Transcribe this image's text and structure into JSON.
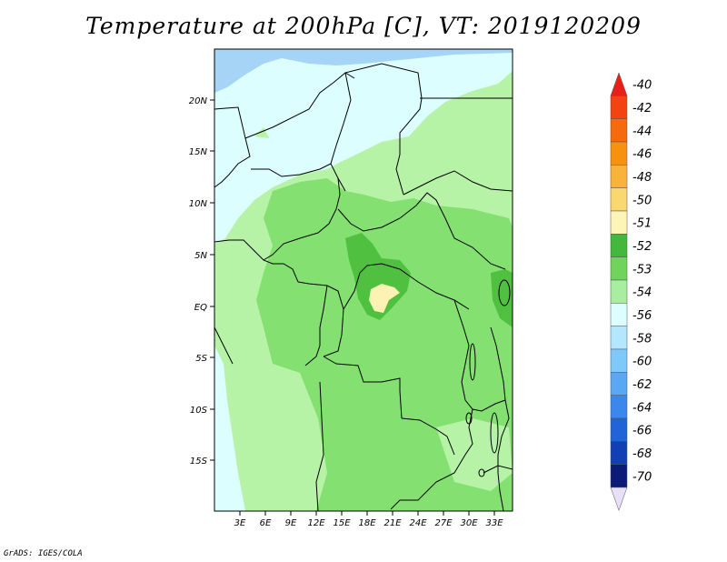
{
  "title": "Temperature at 200hPa [C], VT: 2019120209",
  "credit": "GrADS: IGES/COLA",
  "map": {
    "lat_labels": [
      "20N",
      "15N",
      "10N",
      "5N",
      "EQ",
      "5S",
      "10S",
      "15S"
    ],
    "lon_labels": [
      "3E",
      "6E",
      "9E",
      "12E",
      "15E",
      "18E",
      "21E",
      "24E",
      "27E",
      "30E",
      "33E"
    ]
  },
  "colorbar": {
    "levels": [
      "-40",
      "-42",
      "-44",
      "-46",
      "-48",
      "-50",
      "-51",
      "-52",
      "-53",
      "-54",
      "-56",
      "-58",
      "-60",
      "-62",
      "-64",
      "-66",
      "-68",
      "-70"
    ],
    "colors": [
      "#e8201a",
      "#f24410",
      "#f46a0c",
      "#f6920e",
      "#f8b43a",
      "#fad870",
      "#fdf5b8",
      "#44b83c",
      "#70d35c",
      "#a8eda0",
      "#dcfefe",
      "#b4e6fe",
      "#7ec8fa",
      "#5aa8f4",
      "#3a88ec",
      "#2264d8",
      "#1040b4",
      "#0c1a78"
    ]
  },
  "legend_colors": {
    "land_green_light": "#b6f3a6",
    "land_green_mid": "#84e070",
    "land_green_dark": "#50c040",
    "cold_cyan": "#dcfefe",
    "cold_blue": "#a6d4f6",
    "warm_yellow": "#fbf2b4"
  }
}
